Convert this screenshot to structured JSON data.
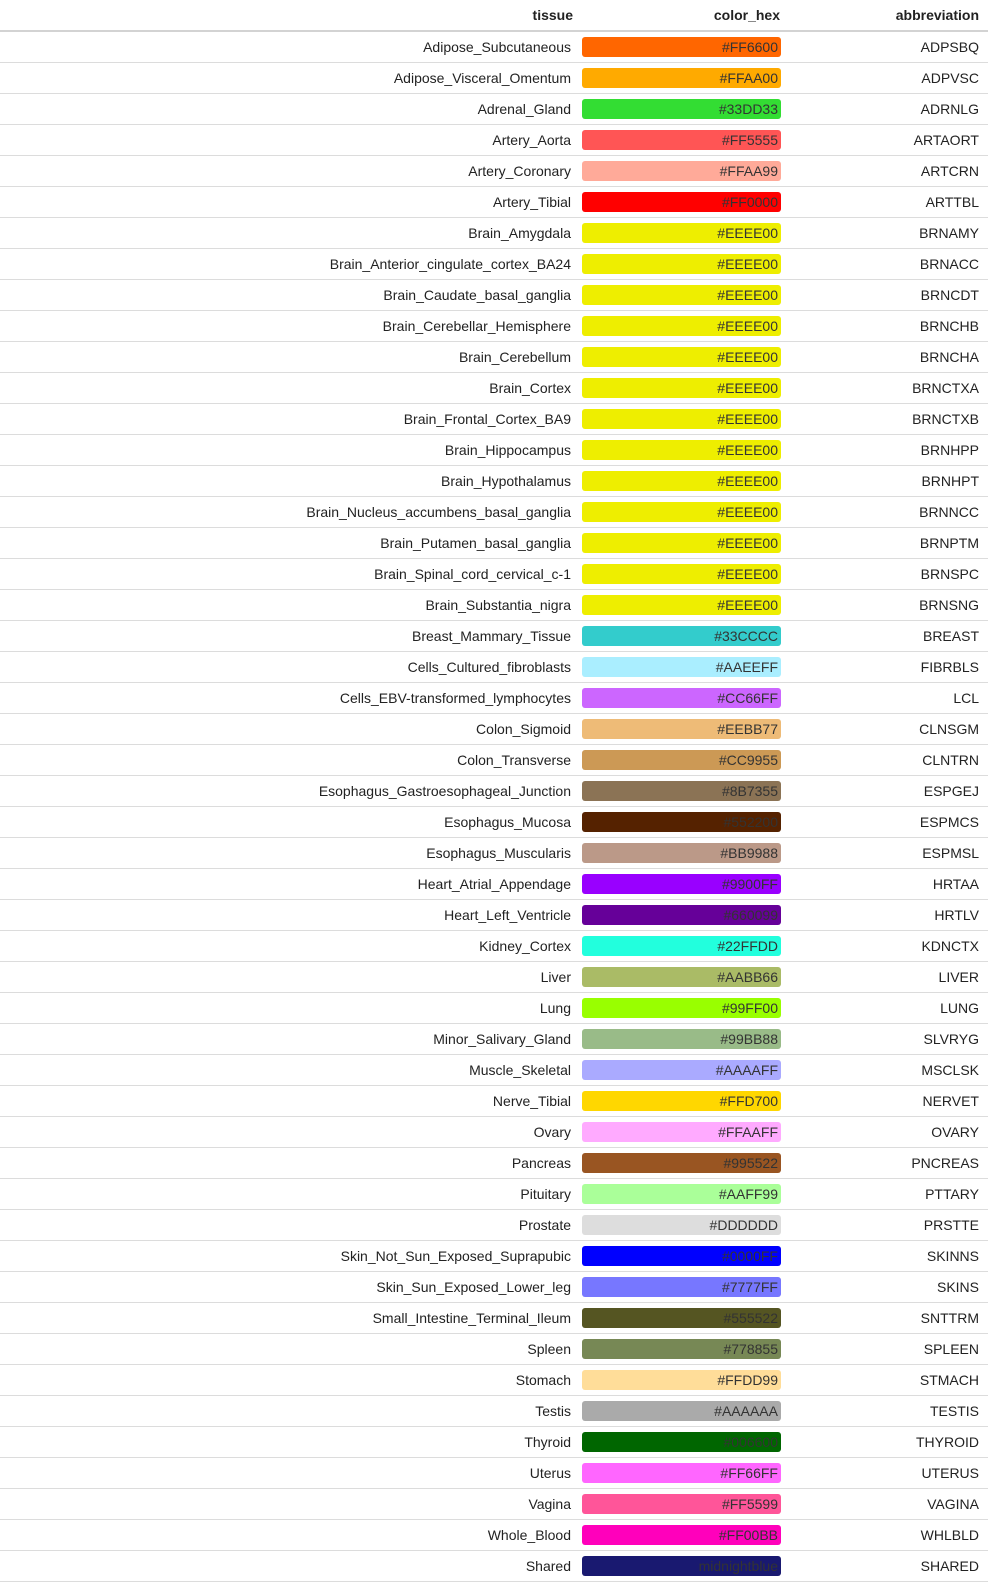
{
  "columns": {
    "tissue": "tissue",
    "color_hex": "color_hex",
    "abbreviation": "abbreviation"
  },
  "rows": [
    {
      "tissue": "Adipose_Subcutaneous",
      "color_hex": "#FF6600",
      "abbreviation": "ADPSBQ",
      "swatch": "#FF6600"
    },
    {
      "tissue": "Adipose_Visceral_Omentum",
      "color_hex": "#FFAA00",
      "abbreviation": "ADPVSC",
      "swatch": "#FFAA00"
    },
    {
      "tissue": "Adrenal_Gland",
      "color_hex": "#33DD33",
      "abbreviation": "ADRNLG",
      "swatch": "#33DD33"
    },
    {
      "tissue": "Artery_Aorta",
      "color_hex": "#FF5555",
      "abbreviation": "ARTAORT",
      "swatch": "#FF5555"
    },
    {
      "tissue": "Artery_Coronary",
      "color_hex": "#FFAA99",
      "abbreviation": "ARTCRN",
      "swatch": "#FFAA99"
    },
    {
      "tissue": "Artery_Tibial",
      "color_hex": "#FF0000",
      "abbreviation": "ARTTBL",
      "swatch": "#FF0000"
    },
    {
      "tissue": "Brain_Amygdala",
      "color_hex": "#EEEE00",
      "abbreviation": "BRNAMY",
      "swatch": "#EEEE00"
    },
    {
      "tissue": "Brain_Anterior_cingulate_cortex_BA24",
      "color_hex": "#EEEE00",
      "abbreviation": "BRNACC",
      "swatch": "#EEEE00"
    },
    {
      "tissue": "Brain_Caudate_basal_ganglia",
      "color_hex": "#EEEE00",
      "abbreviation": "BRNCDT",
      "swatch": "#EEEE00"
    },
    {
      "tissue": "Brain_Cerebellar_Hemisphere",
      "color_hex": "#EEEE00",
      "abbreviation": "BRNCHB",
      "swatch": "#EEEE00"
    },
    {
      "tissue": "Brain_Cerebellum",
      "color_hex": "#EEEE00",
      "abbreviation": "BRNCHA",
      "swatch": "#EEEE00"
    },
    {
      "tissue": "Brain_Cortex",
      "color_hex": "#EEEE00",
      "abbreviation": "BRNCTXA",
      "swatch": "#EEEE00"
    },
    {
      "tissue": "Brain_Frontal_Cortex_BA9",
      "color_hex": "#EEEE00",
      "abbreviation": "BRNCTXB",
      "swatch": "#EEEE00"
    },
    {
      "tissue": "Brain_Hippocampus",
      "color_hex": "#EEEE00",
      "abbreviation": "BRNHPP",
      "swatch": "#EEEE00"
    },
    {
      "tissue": "Brain_Hypothalamus",
      "color_hex": "#EEEE00",
      "abbreviation": "BRNHPT",
      "swatch": "#EEEE00"
    },
    {
      "tissue": "Brain_Nucleus_accumbens_basal_ganglia",
      "color_hex": "#EEEE00",
      "abbreviation": "BRNNCC",
      "swatch": "#EEEE00"
    },
    {
      "tissue": "Brain_Putamen_basal_ganglia",
      "color_hex": "#EEEE00",
      "abbreviation": "BRNPTM",
      "swatch": "#EEEE00"
    },
    {
      "tissue": "Brain_Spinal_cord_cervical_c-1",
      "color_hex": "#EEEE00",
      "abbreviation": "BRNSPC",
      "swatch": "#EEEE00"
    },
    {
      "tissue": "Brain_Substantia_nigra",
      "color_hex": "#EEEE00",
      "abbreviation": "BRNSNG",
      "swatch": "#EEEE00"
    },
    {
      "tissue": "Breast_Mammary_Tissue",
      "color_hex": "#33CCCC",
      "abbreviation": "BREAST",
      "swatch": "#33CCCC"
    },
    {
      "tissue": "Cells_Cultured_fibroblasts",
      "color_hex": "#AAEEFF",
      "abbreviation": "FIBRBLS",
      "swatch": "#AAEEFF"
    },
    {
      "tissue": "Cells_EBV-transformed_lymphocytes",
      "color_hex": "#CC66FF",
      "abbreviation": "LCL",
      "swatch": "#CC66FF"
    },
    {
      "tissue": "Colon_Sigmoid",
      "color_hex": "#EEBB77",
      "abbreviation": "CLNSGM",
      "swatch": "#EEBB77"
    },
    {
      "tissue": "Colon_Transverse",
      "color_hex": "#CC9955",
      "abbreviation": "CLNTRN",
      "swatch": "#CC9955"
    },
    {
      "tissue": "Esophagus_Gastroesophageal_Junction",
      "color_hex": "#8B7355",
      "abbreviation": "ESPGEJ",
      "swatch": "#8B7355"
    },
    {
      "tissue": "Esophagus_Mucosa",
      "color_hex": "#552200",
      "abbreviation": "ESPMCS",
      "swatch": "#552200"
    },
    {
      "tissue": "Esophagus_Muscularis",
      "color_hex": "#BB9988",
      "abbreviation": "ESPMSL",
      "swatch": "#BB9988"
    },
    {
      "tissue": "Heart_Atrial_Appendage",
      "color_hex": "#9900FF",
      "abbreviation": "HRTAA",
      "swatch": "#9900FF"
    },
    {
      "tissue": "Heart_Left_Ventricle",
      "color_hex": "#660099",
      "abbreviation": "HRTLV",
      "swatch": "#660099"
    },
    {
      "tissue": "Kidney_Cortex",
      "color_hex": "#22FFDD",
      "abbreviation": "KDNCTX",
      "swatch": "#22FFDD"
    },
    {
      "tissue": "Liver",
      "color_hex": "#AABB66",
      "abbreviation": "LIVER",
      "swatch": "#AABB66"
    },
    {
      "tissue": "Lung",
      "color_hex": "#99FF00",
      "abbreviation": "LUNG",
      "swatch": "#99FF00"
    },
    {
      "tissue": "Minor_Salivary_Gland",
      "color_hex": "#99BB88",
      "abbreviation": "SLVRYG",
      "swatch": "#99BB88"
    },
    {
      "tissue": "Muscle_Skeletal",
      "color_hex": "#AAAAFF",
      "abbreviation": "MSCLSK",
      "swatch": "#AAAAFF"
    },
    {
      "tissue": "Nerve_Tibial",
      "color_hex": "#FFD700",
      "abbreviation": "NERVET",
      "swatch": "#FFD700"
    },
    {
      "tissue": "Ovary",
      "color_hex": "#FFAAFF",
      "abbreviation": "OVARY",
      "swatch": "#FFAAFF"
    },
    {
      "tissue": "Pancreas",
      "color_hex": "#995522",
      "abbreviation": "PNCREAS",
      "swatch": "#995522"
    },
    {
      "tissue": "Pituitary",
      "color_hex": "#AAFF99",
      "abbreviation": "PTTARY",
      "swatch": "#AAFF99"
    },
    {
      "tissue": "Prostate",
      "color_hex": "#DDDDDD",
      "abbreviation": "PRSTTE",
      "swatch": "#DDDDDD"
    },
    {
      "tissue": "Skin_Not_Sun_Exposed_Suprapubic",
      "color_hex": "#0000FF",
      "abbreviation": "SKINNS",
      "swatch": "#0000FF"
    },
    {
      "tissue": "Skin_Sun_Exposed_Lower_leg",
      "color_hex": "#7777FF",
      "abbreviation": "SKINS",
      "swatch": "#7777FF"
    },
    {
      "tissue": "Small_Intestine_Terminal_Ileum",
      "color_hex": "#555522",
      "abbreviation": "SNTTRM",
      "swatch": "#555522"
    },
    {
      "tissue": "Spleen",
      "color_hex": "#778855",
      "abbreviation": "SPLEEN",
      "swatch": "#778855"
    },
    {
      "tissue": "Stomach",
      "color_hex": "#FFDD99",
      "abbreviation": "STMACH",
      "swatch": "#FFDD99"
    },
    {
      "tissue": "Testis",
      "color_hex": "#AAAAAA",
      "abbreviation": "TESTIS",
      "swatch": "#AAAAAA"
    },
    {
      "tissue": "Thyroid",
      "color_hex": "#006600",
      "abbreviation": "THYROID",
      "swatch": "#006600"
    },
    {
      "tissue": "Uterus",
      "color_hex": "#FF66FF",
      "abbreviation": "UTERUS",
      "swatch": "#FF66FF"
    },
    {
      "tissue": "Vagina",
      "color_hex": "#FF5599",
      "abbreviation": "VAGINA",
      "swatch": "#FF5599"
    },
    {
      "tissue": "Whole_Blood",
      "color_hex": "#FF00BB",
      "abbreviation": "WHLBLD",
      "swatch": "#FF00BB"
    },
    {
      "tissue": "Shared",
      "color_hex": "midnightblue",
      "abbreviation": "SHARED",
      "swatch": "#191970"
    }
  ]
}
